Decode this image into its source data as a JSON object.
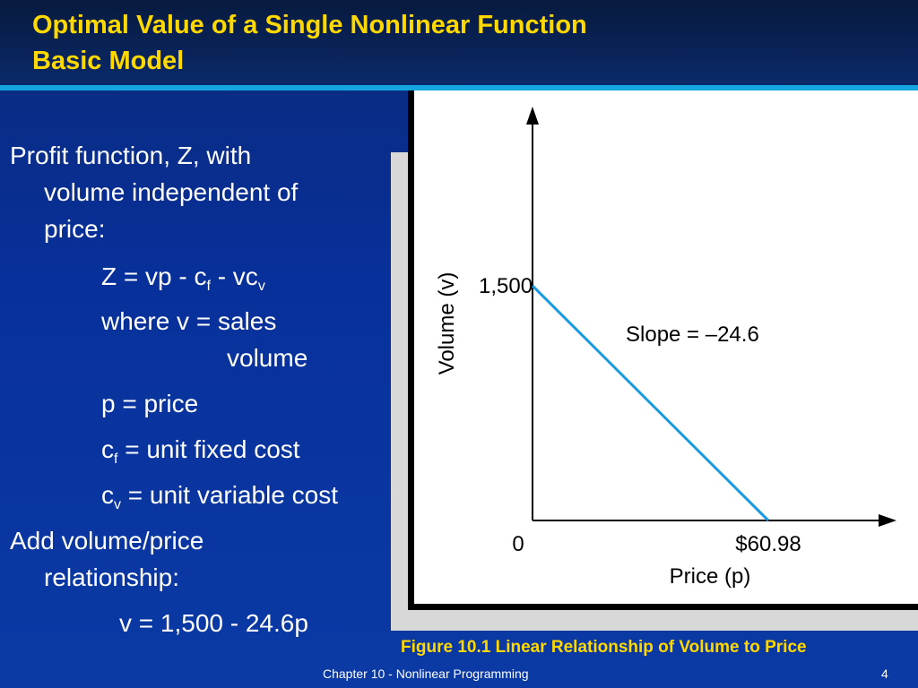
{
  "slide": {
    "title_line1": "Optimal Value of a Single Nonlinear Function",
    "title_line2": "Basic Model",
    "bullet1_line1": "Profit function, Z, with",
    "bullet1_line2": "volume independent of",
    "bullet1_line3": "price:",
    "eq_z_prefix": "Z = vp - c",
    "eq_z_sub_f": "f",
    "eq_z_mid": " - vc",
    "eq_z_sub_v": "v",
    "where_line1": "where v = sales",
    "where_line2": "volume",
    "p_def": "p = price",
    "cf_c": "c",
    "cf_sub": "f",
    "cf_rest": " = unit fixed cost",
    "cv_c": "c",
    "cv_sub": "v",
    "cv_rest": " = unit variable cost",
    "bullet2_line1": "Add volume/price",
    "bullet2_line2": "relationship:",
    "eq_v": "v = 1,500 - 24.6p",
    "caption": "Figure 10.1  Linear Relationship of Volume to Price",
    "footer_chapter": "Chapter 10 - Nonlinear Programming",
    "footer_page": "4"
  },
  "chart_data": {
    "type": "line",
    "x": [
      0,
      60.98
    ],
    "y": [
      1500,
      0
    ],
    "xlabel": "Price (p)",
    "ylabel": "Volume (v)",
    "x_tick_labels": [
      "0",
      "$60.98"
    ],
    "y_tick_labels": [
      "1,500"
    ],
    "annotation": "Slope = –24.6",
    "line_color": "#1a9be0"
  }
}
